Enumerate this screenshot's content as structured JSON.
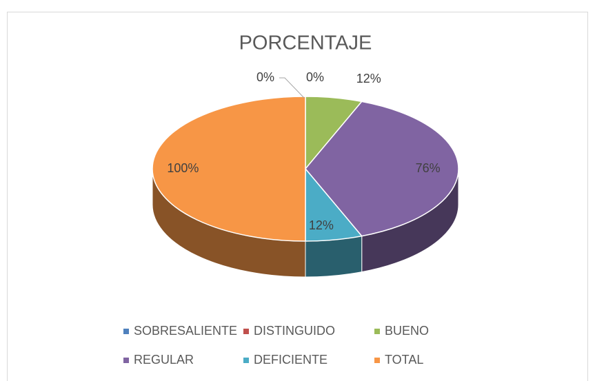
{
  "chart_data": {
    "type": "pie3d",
    "title": "PORCENTAJE",
    "categories": [
      "SOBRESALIENTE",
      "DISTINGUIDO",
      "BUENO",
      "REGULAR",
      "DEFICIENTE",
      "TOTAL"
    ],
    "values": [
      0,
      0,
      12,
      76,
      12,
      100
    ],
    "value_labels": [
      "0%",
      "0%",
      "12%",
      "76%",
      "12%",
      "100%"
    ],
    "colors": [
      "#4f81bd",
      "#c0504d",
      "#9bbb59",
      "#8064a2",
      "#4bacc6",
      "#f79646"
    ],
    "legend": "bottom"
  }
}
